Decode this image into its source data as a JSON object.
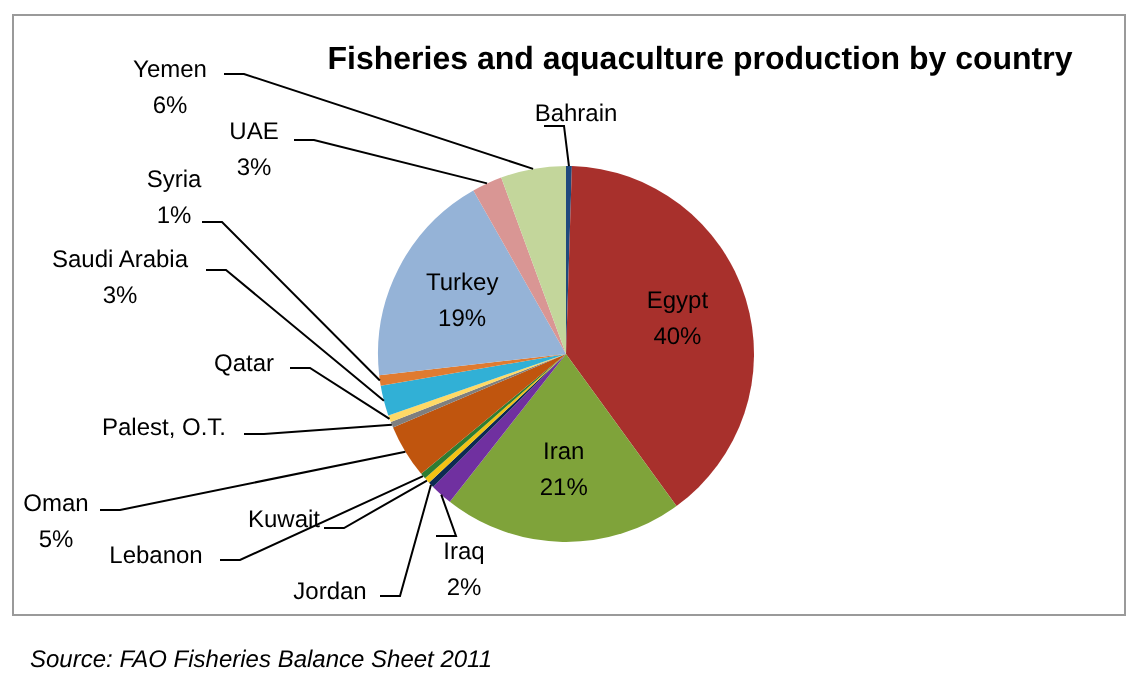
{
  "chart_data": {
    "type": "pie",
    "title": "Fisheries and aquaculture production by country",
    "categories": [
      "Bahrain",
      "Egypt",
      "Iran",
      "Iraq",
      "Jordan",
      "Kuwait",
      "Lebanon",
      "Oman",
      "Palest, O.T.",
      "Qatar",
      "Saudi Arabia",
      "Syria",
      "Turkey",
      "UAE",
      "Yemen"
    ],
    "values": [
      0.5,
      39.5,
      20.6,
      1.9,
      0.5,
      0.5,
      0.5,
      4.6,
      0.5,
      0.6,
      2.6,
      0.9,
      18.6,
      2.6,
      5.6
    ],
    "colors": [
      "#1f497d",
      "#a8302c",
      "#7fa33a",
      "#7030a0",
      "#0d2b52",
      "#f2c314",
      "#2e7d32",
      "#c0550e",
      "#7f7f7f",
      "#ffd966",
      "#31b0d6",
      "#e07b30",
      "#95b3d7",
      "#d99694",
      "#c3d69b"
    ],
    "value_labels": [
      null,
      "40%",
      "21%",
      "2%",
      null,
      null,
      null,
      "5%",
      null,
      null,
      "3%",
      "1%",
      "19%",
      "3%",
      "6%"
    ],
    "annotations": [
      "Source: FAO Fisheries Balance Sheet 2011"
    ]
  }
}
